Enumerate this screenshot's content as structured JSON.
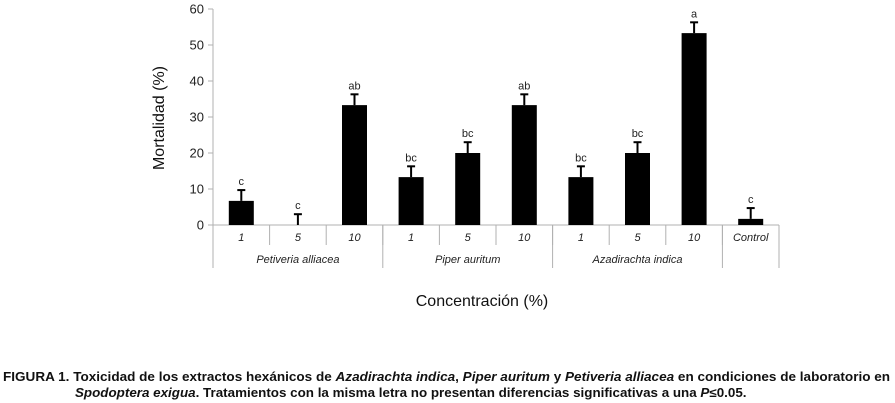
{
  "chart_data": {
    "type": "bar",
    "title": "",
    "xlabel": "Concentración (%)",
    "ylabel": "Mortalidad (%)",
    "ylim": [
      0,
      60
    ],
    "yticks": [
      0,
      10,
      20,
      30,
      40,
      50,
      60
    ],
    "grid": false,
    "categories": [
      "1",
      "5",
      "10",
      "1",
      "5",
      "10",
      "1",
      "5",
      "10",
      "Control"
    ],
    "groups": [
      {
        "label": "Petiveria alliacea",
        "span": 3
      },
      {
        "label": "Piper auritum",
        "span": 3
      },
      {
        "label": "Azadirachta indica",
        "span": 3
      },
      {
        "label": "",
        "span": 1
      }
    ],
    "values": [
      6.7,
      0,
      33.3,
      13.3,
      20,
      33.3,
      13.3,
      20,
      53.3,
      1.7
    ],
    "errors": [
      3,
      3,
      3,
      3,
      3,
      3,
      3,
      3,
      3,
      3
    ],
    "letters": [
      "c",
      "c",
      "ab",
      "bc",
      "bc",
      "ab",
      "bc",
      "bc",
      "a",
      "c"
    ],
    "bar_color": "#000000"
  },
  "caption": {
    "line1": [
      {
        "t": "FIGURA 1. Toxicidad de los extractos hexánicos de ",
        "i": false
      },
      {
        "t": "Azadirachta indica",
        "i": true
      },
      {
        "t": ", ",
        "i": false
      },
      {
        "t": "Piper auritum",
        "i": true
      },
      {
        "t": " y ",
        "i": false
      },
      {
        "t": "Petiveria alliacea",
        "i": true
      },
      {
        "t": " en condiciones de laboratorio en",
        "i": false
      }
    ],
    "line2": [
      {
        "t": "Spodoptera exigua",
        "i": true
      },
      {
        "t": ". Tratamientos con la misma letra no presentan diferencias significativas a una ",
        "i": false
      },
      {
        "t": "P",
        "i": true
      },
      {
        "t": "≤0.05.",
        "i": false
      }
    ]
  }
}
